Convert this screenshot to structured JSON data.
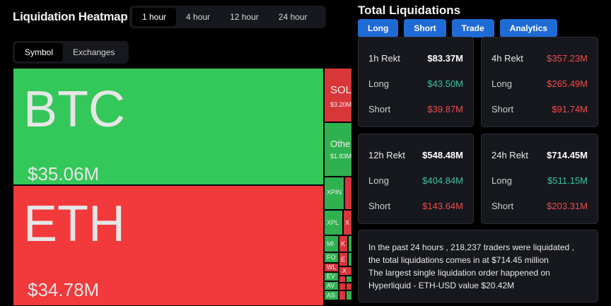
{
  "heatmap": {
    "title": "Liquidation Heatmap",
    "time_tabs": [
      "1 hour",
      "4 hour",
      "12 hour",
      "24 hour"
    ],
    "active_time_tab": "1 hour",
    "view_tabs": [
      "Symbol",
      "Exchanges"
    ],
    "active_view_tab": "Symbol",
    "cells": {
      "btc": {
        "symbol": "BTC",
        "value": "$35.06M"
      },
      "eth": {
        "symbol": "ETH",
        "value": "$34.78M"
      },
      "sol": {
        "symbol": "SOL",
        "value": "$3.20M"
      },
      "other": {
        "symbol": "Othe",
        "value": "$1.83M"
      },
      "xpin": "XPIN",
      "xpl": "XPL",
      "x1": "X",
      "mi": "MI",
      "k": "K",
      "fo": "FO",
      "e": "E",
      "wl": "WL",
      "x2": "X",
      "ev": "EV",
      "av": "AV",
      "as": "AS"
    },
    "colors": {
      "long_green": "#34c759",
      "short_red": "#f2393b"
    }
  },
  "total": {
    "title": "Total Liquidations",
    "buttons": [
      "Long",
      "Short",
      "Trade",
      "Analytics"
    ],
    "accent": "#1f6bd6",
    "cards": [
      {
        "header": "1h Rekt",
        "total": "$83.37M",
        "long_label": "Long",
        "long": "$43.50M",
        "short_label": "Short",
        "short": "$39.87M",
        "total_color": "white"
      },
      {
        "header": "4h Rekt",
        "total": "$357.23M",
        "long_label": "Long",
        "long": "$265.49M",
        "short_label": "Short",
        "short": "$91.74M",
        "total_color": "red"
      },
      {
        "header": "12h Rekt",
        "total": "$548.48M",
        "long_label": "Long",
        "long": "$404.84M",
        "short_label": "Short",
        "short": "$143.64M",
        "total_color": "white"
      },
      {
        "header": "24h Rekt",
        "total": "$714.45M",
        "long_label": "Long",
        "long": "$511.15M",
        "short_label": "Short",
        "short": "$203.31M",
        "total_color": "white"
      }
    ],
    "summary": [
      "In the past 24 hours , 218,237 traders were liquidated ,",
      "the total liquidations comes in at $714.45 million",
      "The largest single liquidation order happened on",
      "Hyperliquid - ETH-USD value $20.42M"
    ]
  }
}
